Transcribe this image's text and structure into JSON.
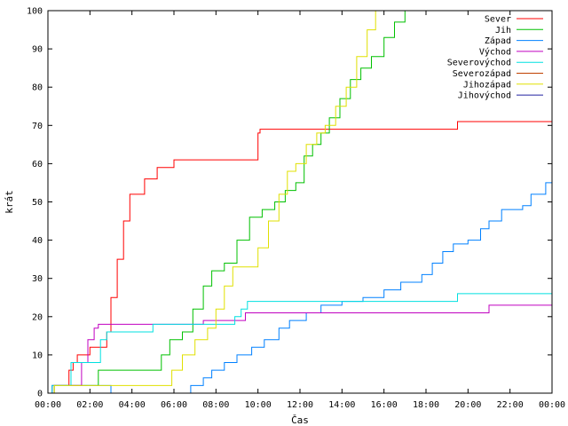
{
  "chart_data": {
    "type": "line",
    "xlabel": "Čas",
    "ylabel": "krát",
    "xlim": [
      0,
      24
    ],
    "ylim": [
      0,
      100
    ],
    "x_ticks": [
      "00:00",
      "02:00",
      "04:00",
      "06:00",
      "08:00",
      "10:00",
      "12:00",
      "14:00",
      "16:00",
      "18:00",
      "20:00",
      "22:00",
      "00:00"
    ],
    "y_ticks": [
      0,
      10,
      20,
      30,
      40,
      50,
      60,
      70,
      80,
      90,
      100
    ],
    "grid": false,
    "legend_position": "top-right",
    "series": [
      {
        "name": "Sever",
        "color": "#ff0000",
        "points": [
          [
            0,
            0
          ],
          [
            0.3,
            2
          ],
          [
            0.9,
            2
          ],
          [
            1.0,
            6
          ],
          [
            1.2,
            8
          ],
          [
            1.4,
            10
          ],
          [
            1.8,
            10
          ],
          [
            2.0,
            12
          ],
          [
            2.5,
            12
          ],
          [
            2.8,
            16
          ],
          [
            3.0,
            25
          ],
          [
            3.3,
            35
          ],
          [
            3.6,
            45
          ],
          [
            3.9,
            52
          ],
          [
            4.6,
            56
          ],
          [
            5.0,
            56
          ],
          [
            5.2,
            59
          ],
          [
            5.8,
            59
          ],
          [
            6.0,
            61
          ],
          [
            9.8,
            61
          ],
          [
            10.0,
            68
          ],
          [
            10.1,
            69
          ],
          [
            19.3,
            69
          ],
          [
            19.5,
            71
          ],
          [
            24,
            71
          ]
        ]
      },
      {
        "name": "Jih",
        "color": "#00c000",
        "points": [
          [
            0,
            0
          ],
          [
            0.3,
            2
          ],
          [
            2.2,
            2
          ],
          [
            2.4,
            6
          ],
          [
            4.9,
            6
          ],
          [
            5.4,
            10
          ],
          [
            5.8,
            14
          ],
          [
            6.4,
            16
          ],
          [
            6.9,
            22
          ],
          [
            7.4,
            28
          ],
          [
            7.8,
            32
          ],
          [
            8.4,
            34
          ],
          [
            9.0,
            40
          ],
          [
            9.6,
            46
          ],
          [
            10.2,
            48
          ],
          [
            10.8,
            50
          ],
          [
            11.3,
            53
          ],
          [
            11.8,
            55
          ],
          [
            12.2,
            62
          ],
          [
            12.6,
            65
          ],
          [
            13.0,
            68
          ],
          [
            13.4,
            72
          ],
          [
            13.9,
            77
          ],
          [
            14.4,
            82
          ],
          [
            14.9,
            85
          ],
          [
            15.4,
            88
          ],
          [
            16.0,
            93
          ],
          [
            16.5,
            97
          ],
          [
            17.0,
            100
          ],
          [
            24,
            100
          ]
        ]
      },
      {
        "name": "Západ",
        "color": "#0080ff",
        "points": [
          [
            0,
            0
          ],
          [
            0.2,
            2
          ],
          [
            2.9,
            2
          ],
          [
            3.0,
            0
          ],
          [
            6.4,
            0
          ],
          [
            6.8,
            2
          ],
          [
            7.4,
            4
          ],
          [
            7.8,
            6
          ],
          [
            8.4,
            8
          ],
          [
            9.0,
            10
          ],
          [
            9.7,
            12
          ],
          [
            10.3,
            14
          ],
          [
            11.0,
            17
          ],
          [
            11.5,
            19
          ],
          [
            12.3,
            21
          ],
          [
            13.0,
            23
          ],
          [
            14.0,
            24
          ],
          [
            15.0,
            25
          ],
          [
            16.0,
            27
          ],
          [
            16.8,
            29
          ],
          [
            17.8,
            31
          ],
          [
            18.3,
            34
          ],
          [
            18.8,
            37
          ],
          [
            19.3,
            39
          ],
          [
            20.0,
            40
          ],
          [
            20.6,
            43
          ],
          [
            21.0,
            45
          ],
          [
            21.6,
            48
          ],
          [
            22.6,
            49
          ],
          [
            23.0,
            52
          ],
          [
            23.7,
            55
          ],
          [
            24,
            56
          ]
        ]
      },
      {
        "name": "Východ",
        "color": "#c000c0",
        "points": [
          [
            0,
            0
          ],
          [
            0.2,
            2
          ],
          [
            1.4,
            2
          ],
          [
            1.6,
            8
          ],
          [
            1.9,
            14
          ],
          [
            2.2,
            17
          ],
          [
            2.4,
            18
          ],
          [
            7.2,
            18
          ],
          [
            7.4,
            19
          ],
          [
            9.2,
            19
          ],
          [
            9.4,
            21
          ],
          [
            20.8,
            21
          ],
          [
            21.0,
            23
          ],
          [
            24,
            23
          ]
        ]
      },
      {
        "name": "Severovýchod",
        "color": "#00e0e0",
        "points": [
          [
            0,
            0
          ],
          [
            0.2,
            2
          ],
          [
            0.9,
            2
          ],
          [
            1.1,
            8
          ],
          [
            2.2,
            8
          ],
          [
            2.5,
            14
          ],
          [
            2.8,
            16
          ],
          [
            4.8,
            16
          ],
          [
            5.0,
            18
          ],
          [
            8.6,
            18
          ],
          [
            8.9,
            20
          ],
          [
            9.2,
            22
          ],
          [
            9.5,
            24
          ],
          [
            19.3,
            24
          ],
          [
            19.5,
            26
          ],
          [
            24,
            26
          ]
        ]
      },
      {
        "name": "Severozápad",
        "color": "#c04000",
        "points": []
      },
      {
        "name": "Jihozápad",
        "color": "#e0e000",
        "points": [
          [
            0,
            0
          ],
          [
            0.3,
            2
          ],
          [
            5.6,
            2
          ],
          [
            5.9,
            6
          ],
          [
            6.4,
            10
          ],
          [
            7.0,
            14
          ],
          [
            7.6,
            17
          ],
          [
            8.0,
            22
          ],
          [
            8.4,
            28
          ],
          [
            8.8,
            33
          ],
          [
            9.8,
            33
          ],
          [
            10.0,
            38
          ],
          [
            10.5,
            45
          ],
          [
            11.0,
            52
          ],
          [
            11.4,
            58
          ],
          [
            11.8,
            60
          ],
          [
            12.3,
            65
          ],
          [
            12.8,
            68
          ],
          [
            13.2,
            70
          ],
          [
            13.7,
            75
          ],
          [
            14.2,
            80
          ],
          [
            14.7,
            88
          ],
          [
            15.2,
            95
          ],
          [
            15.6,
            100
          ],
          [
            24,
            100
          ]
        ]
      },
      {
        "name": "Jihovýchod",
        "color": "#2020a0",
        "points": []
      }
    ]
  }
}
